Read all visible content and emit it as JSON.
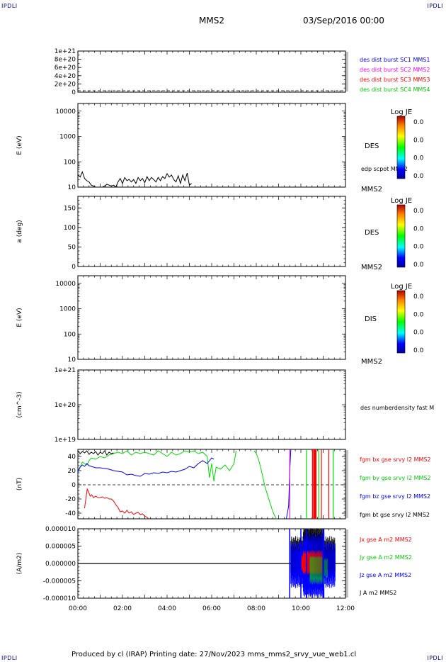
{
  "header": {
    "corner_label": "IPDLI",
    "title": "MMS2",
    "datetime": "03/Sep/2016 00:00"
  },
  "footer": {
    "text": "Produced by cl (IRAP)   Printing date: 27/Nov/2023   mms_mms2_srvy_vue_web1.cl"
  },
  "colors": {
    "bx": "#ff0000",
    "by": "#00dd00",
    "bz": "#0000ff",
    "bt": "#000000",
    "cyan": "#00e5e5",
    "magenta": "#e000e0"
  },
  "x_axis": {
    "ticks": [
      "00:00",
      "02:00",
      "04:00",
      "06:00",
      "08:00",
      "10:00",
      "12:00"
    ],
    "range_hours": [
      0,
      12
    ]
  },
  "chart_data": [
    {
      "type": "line",
      "panel": "burst",
      "ylim": [
        0,
        1e+21
      ],
      "yticks": [
        0,
        2e+20,
        4e+20,
        6e+20,
        8e+20,
        1e+21
      ],
      "ytick_labels": [
        "0",
        "2e+20",
        "4e+20",
        "6e+20",
        "8e+20",
        "1e+21"
      ],
      "series": [],
      "legend": [
        {
          "text": "des dist burst SC1 MMS1",
          "color": "#0000ff"
        },
        {
          "text": "des dist burst SC2 MMS2",
          "color": "#ff00ff"
        },
        {
          "text": "des dist burst SC3 MMS3",
          "color": "#ff0000"
        },
        {
          "text": "des dist burst SC4 MMS4",
          "color": "#00cc00"
        }
      ]
    },
    {
      "type": "heatmap",
      "panel": "des_energy",
      "ylabel": "E (eV)",
      "yscale": "log",
      "ylim": [
        10,
        20000
      ],
      "ytick_labels": [
        "10000",
        "1000",
        "100",
        "10"
      ],
      "right_label": "DES",
      "sub_label": "MMS2",
      "overlay_label": "edp scpot MMS2",
      "colorbar": {
        "title": "Log JE",
        "labels": [
          "0.0",
          "0.0",
          "0.0",
          "0.0"
        ]
      },
      "scpot": {
        "x": [
          0.0,
          0.1,
          0.2,
          0.3,
          0.4,
          0.5,
          0.6,
          0.7,
          0.8,
          0.9,
          1.0,
          1.1,
          1.2,
          1.3,
          1.4,
          1.5,
          1.6,
          1.7,
          1.8,
          1.9,
          2.0,
          2.1,
          2.2,
          2.3,
          2.4,
          2.5,
          2.6,
          2.7,
          2.8,
          2.9,
          3.0,
          3.1,
          3.2,
          3.3,
          3.4,
          3.5,
          3.6,
          3.7,
          3.8,
          3.9,
          4.0,
          4.1,
          4.2,
          4.3,
          4.4,
          4.5,
          4.6,
          4.7,
          4.8,
          4.9,
          5.0,
          5.1
        ],
        "y": [
          30,
          25,
          40,
          22,
          18,
          16,
          12,
          11,
          10,
          10,
          10,
          10,
          11,
          13,
          12,
          11,
          12,
          10,
          16,
          22,
          14,
          24,
          18,
          20,
          16,
          20,
          14,
          24,
          18,
          22,
          15,
          26,
          18,
          24,
          20,
          16,
          24,
          18,
          26,
          22,
          34,
          25,
          30,
          20,
          16,
          28,
          14,
          30,
          18,
          36,
          12,
          14
        ]
      }
    },
    {
      "type": "heatmap",
      "panel": "des_pitch",
      "ylabel": "a (deg)",
      "ylim": [
        0,
        180
      ],
      "ytick_labels": [
        "150",
        "100",
        "50",
        "0"
      ],
      "right_label": "DES",
      "sub_label": "MMS2",
      "colorbar": {
        "title": "Log JE",
        "labels": [
          "0.0",
          "0.0",
          "0.0",
          "0.0"
        ]
      }
    },
    {
      "type": "heatmap",
      "panel": "dis_energy",
      "ylabel": "E (eV)",
      "yscale": "log",
      "ylim": [
        10,
        20000
      ],
      "ytick_labels": [
        "10000",
        "1000",
        "100",
        "10"
      ],
      "right_label": "DIS",
      "sub_label": "MMS2",
      "colorbar": {
        "title": "Log JE",
        "labels": [
          "0.0",
          "0.0",
          "0.0",
          "0.0"
        ]
      }
    },
    {
      "type": "line",
      "panel": "density",
      "ylabel": "(cm^-3)",
      "yscale": "log",
      "ylim": [
        1e+19,
        1e+21
      ],
      "ytick_labels": [
        "1e+21",
        "1e+20",
        "1e+19"
      ],
      "legend": [
        {
          "text": "des numberdensity fast M",
          "color": "#000000"
        }
      ],
      "series": []
    },
    {
      "type": "line",
      "panel": "fgm",
      "ylabel": "(nT)",
      "ylim": [
        -48,
        50
      ],
      "ytick_labels": [
        "40",
        "20",
        "0",
        "-20",
        "-40"
      ],
      "legend": [
        {
          "text": "fgm bx gse srvy l2 MMS2",
          "color": "#ff0000"
        },
        {
          "text": "fgm by gse srvy l2 MMS2",
          "color": "#00cc00"
        },
        {
          "text": "fgm bz gse srvy l2 MMS2",
          "color": "#0000ff"
        },
        {
          "text": "fgm bt gse srvy l2 MMS2",
          "color": "#000000"
        }
      ],
      "series": [
        {
          "name": "bt",
          "color": "#000000",
          "x": [
            0.0,
            0.1,
            0.2,
            0.3,
            0.4,
            0.5,
            0.6,
            0.7,
            0.8,
            0.9,
            1.0,
            1.1,
            1.2,
            1.3,
            1.4,
            1.5,
            1.6
          ],
          "y": [
            48,
            44,
            47,
            45,
            48,
            43,
            46,
            44,
            47,
            42,
            46,
            44,
            48,
            42,
            46,
            44,
            45
          ]
        },
        {
          "name": "by",
          "color": "#00dd00",
          "x": [
            0.0,
            0.1,
            0.2,
            0.3,
            0.4,
            0.5,
            0.6,
            0.8,
            1.0,
            1.2,
            1.4,
            1.6,
            1.8,
            2.0,
            2.2,
            2.4,
            2.6,
            2.8,
            3.0,
            3.2,
            3.4,
            3.6,
            3.8,
            4.0,
            4.2,
            4.4,
            4.6,
            4.8,
            5.0,
            5.2,
            5.4,
            5.6,
            5.8,
            5.9,
            6.0,
            6.1,
            6.2,
            6.4,
            6.6,
            6.8,
            7.0,
            7.1
          ],
          "y": [
            20,
            25,
            32,
            30,
            28,
            34,
            38,
            36,
            40,
            38,
            42,
            44,
            46,
            44,
            48,
            42,
            46,
            44,
            46,
            44,
            42,
            48,
            44,
            40,
            46,
            42,
            44,
            48,
            46,
            48,
            44,
            46,
            40,
            10,
            30,
            5,
            25,
            22,
            28,
            20,
            30,
            48
          ]
        },
        {
          "name": "bz",
          "color": "#0000ff",
          "x": [
            0.0,
            0.1,
            0.2,
            0.3,
            0.4,
            0.5,
            0.6,
            0.8,
            1.0,
            1.2,
            1.4,
            1.6,
            1.8,
            2.0,
            2.2,
            2.4,
            2.6,
            2.8,
            3.0,
            3.2,
            3.4,
            3.6,
            3.8,
            4.0,
            4.2,
            4.4,
            4.6,
            4.8,
            5.0,
            5.2,
            5.4,
            5.6,
            5.8,
            6.0,
            6.1
          ],
          "y": [
            18,
            25,
            28,
            26,
            30,
            27,
            26,
            24,
            24,
            23,
            22,
            20,
            19,
            18,
            14,
            15,
            13,
            12,
            16,
            15,
            17,
            16,
            18,
            17,
            19,
            18,
            20,
            22,
            26,
            24,
            30,
            34,
            30,
            38,
            36
          ]
        },
        {
          "name": "bx",
          "color": "#ff0000",
          "x": [
            0.3,
            0.32,
            0.36,
            0.42,
            0.48,
            0.55,
            0.62,
            0.7,
            0.8,
            0.9,
            1.0,
            1.1,
            1.2,
            1.3,
            1.4,
            1.5,
            1.6,
            1.7,
            1.8,
            1.9,
            2.0,
            2.1,
            2.2,
            2.3,
            2.4,
            2.5,
            2.6,
            2.7,
            2.8,
            2.9,
            3.0,
            3.1,
            3.18
          ],
          "y": [
            -33,
            -28,
            -20,
            -6,
            -10,
            -16,
            -14,
            -18,
            -16,
            -18,
            -18,
            -17,
            -19,
            -18,
            -20,
            -20,
            -23,
            -28,
            -32,
            -38,
            -37,
            -40,
            -36,
            -40,
            -38,
            -42,
            -40,
            -39,
            -42,
            -41,
            -44,
            -46,
            -48
          ]
        }
      ]
    },
    {
      "type": "line",
      "panel": "current",
      "ylabel": "(A/m2)",
      "ylim": [
        -1e-05,
        1e-05
      ],
      "ytick_labels": [
        "0.000010",
        "0.000005",
        "0.000000",
        "-0.000005",
        "-0.000010"
      ],
      "legend": [
        {
          "text": "Jx gse A m2 MMS2",
          "color": "#ff0000"
        },
        {
          "text": "Jy gse A m2 MMS2",
          "color": "#00cc00"
        },
        {
          "text": "Jz gse A m2 MMS2",
          "color": "#0000ff"
        },
        {
          "text": "J A m2 MMS2",
          "color": "#000000"
        }
      ],
      "series": []
    }
  ]
}
